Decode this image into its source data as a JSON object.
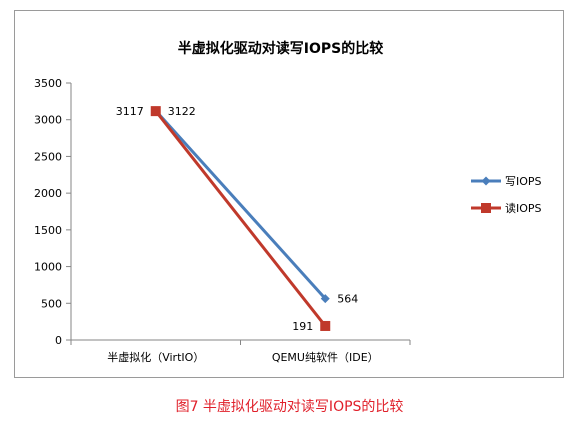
{
  "chart_data": {
    "type": "line",
    "title": "半虚拟化驱动对读写IOPS的比较",
    "categories": [
      "半虚拟化（VirtIO）",
      "QEMU纯软件（IDE）"
    ],
    "series": [
      {
        "name": "写IOPS",
        "values": [
          3122,
          564
        ],
        "color": "#4a7ebb",
        "marker": "diamond"
      },
      {
        "name": "读IOPS",
        "values": [
          3117,
          191
        ],
        "color": "#c0392b",
        "marker": "square"
      }
    ],
    "ylim": [
      0,
      3500
    ],
    "yticks": [
      0,
      500,
      1000,
      1500,
      2000,
      2500,
      3000,
      3500
    ],
    "grid": false,
    "legend": "right"
  },
  "caption": "图7 半虚拟化驱动对读写IOPS的比较"
}
